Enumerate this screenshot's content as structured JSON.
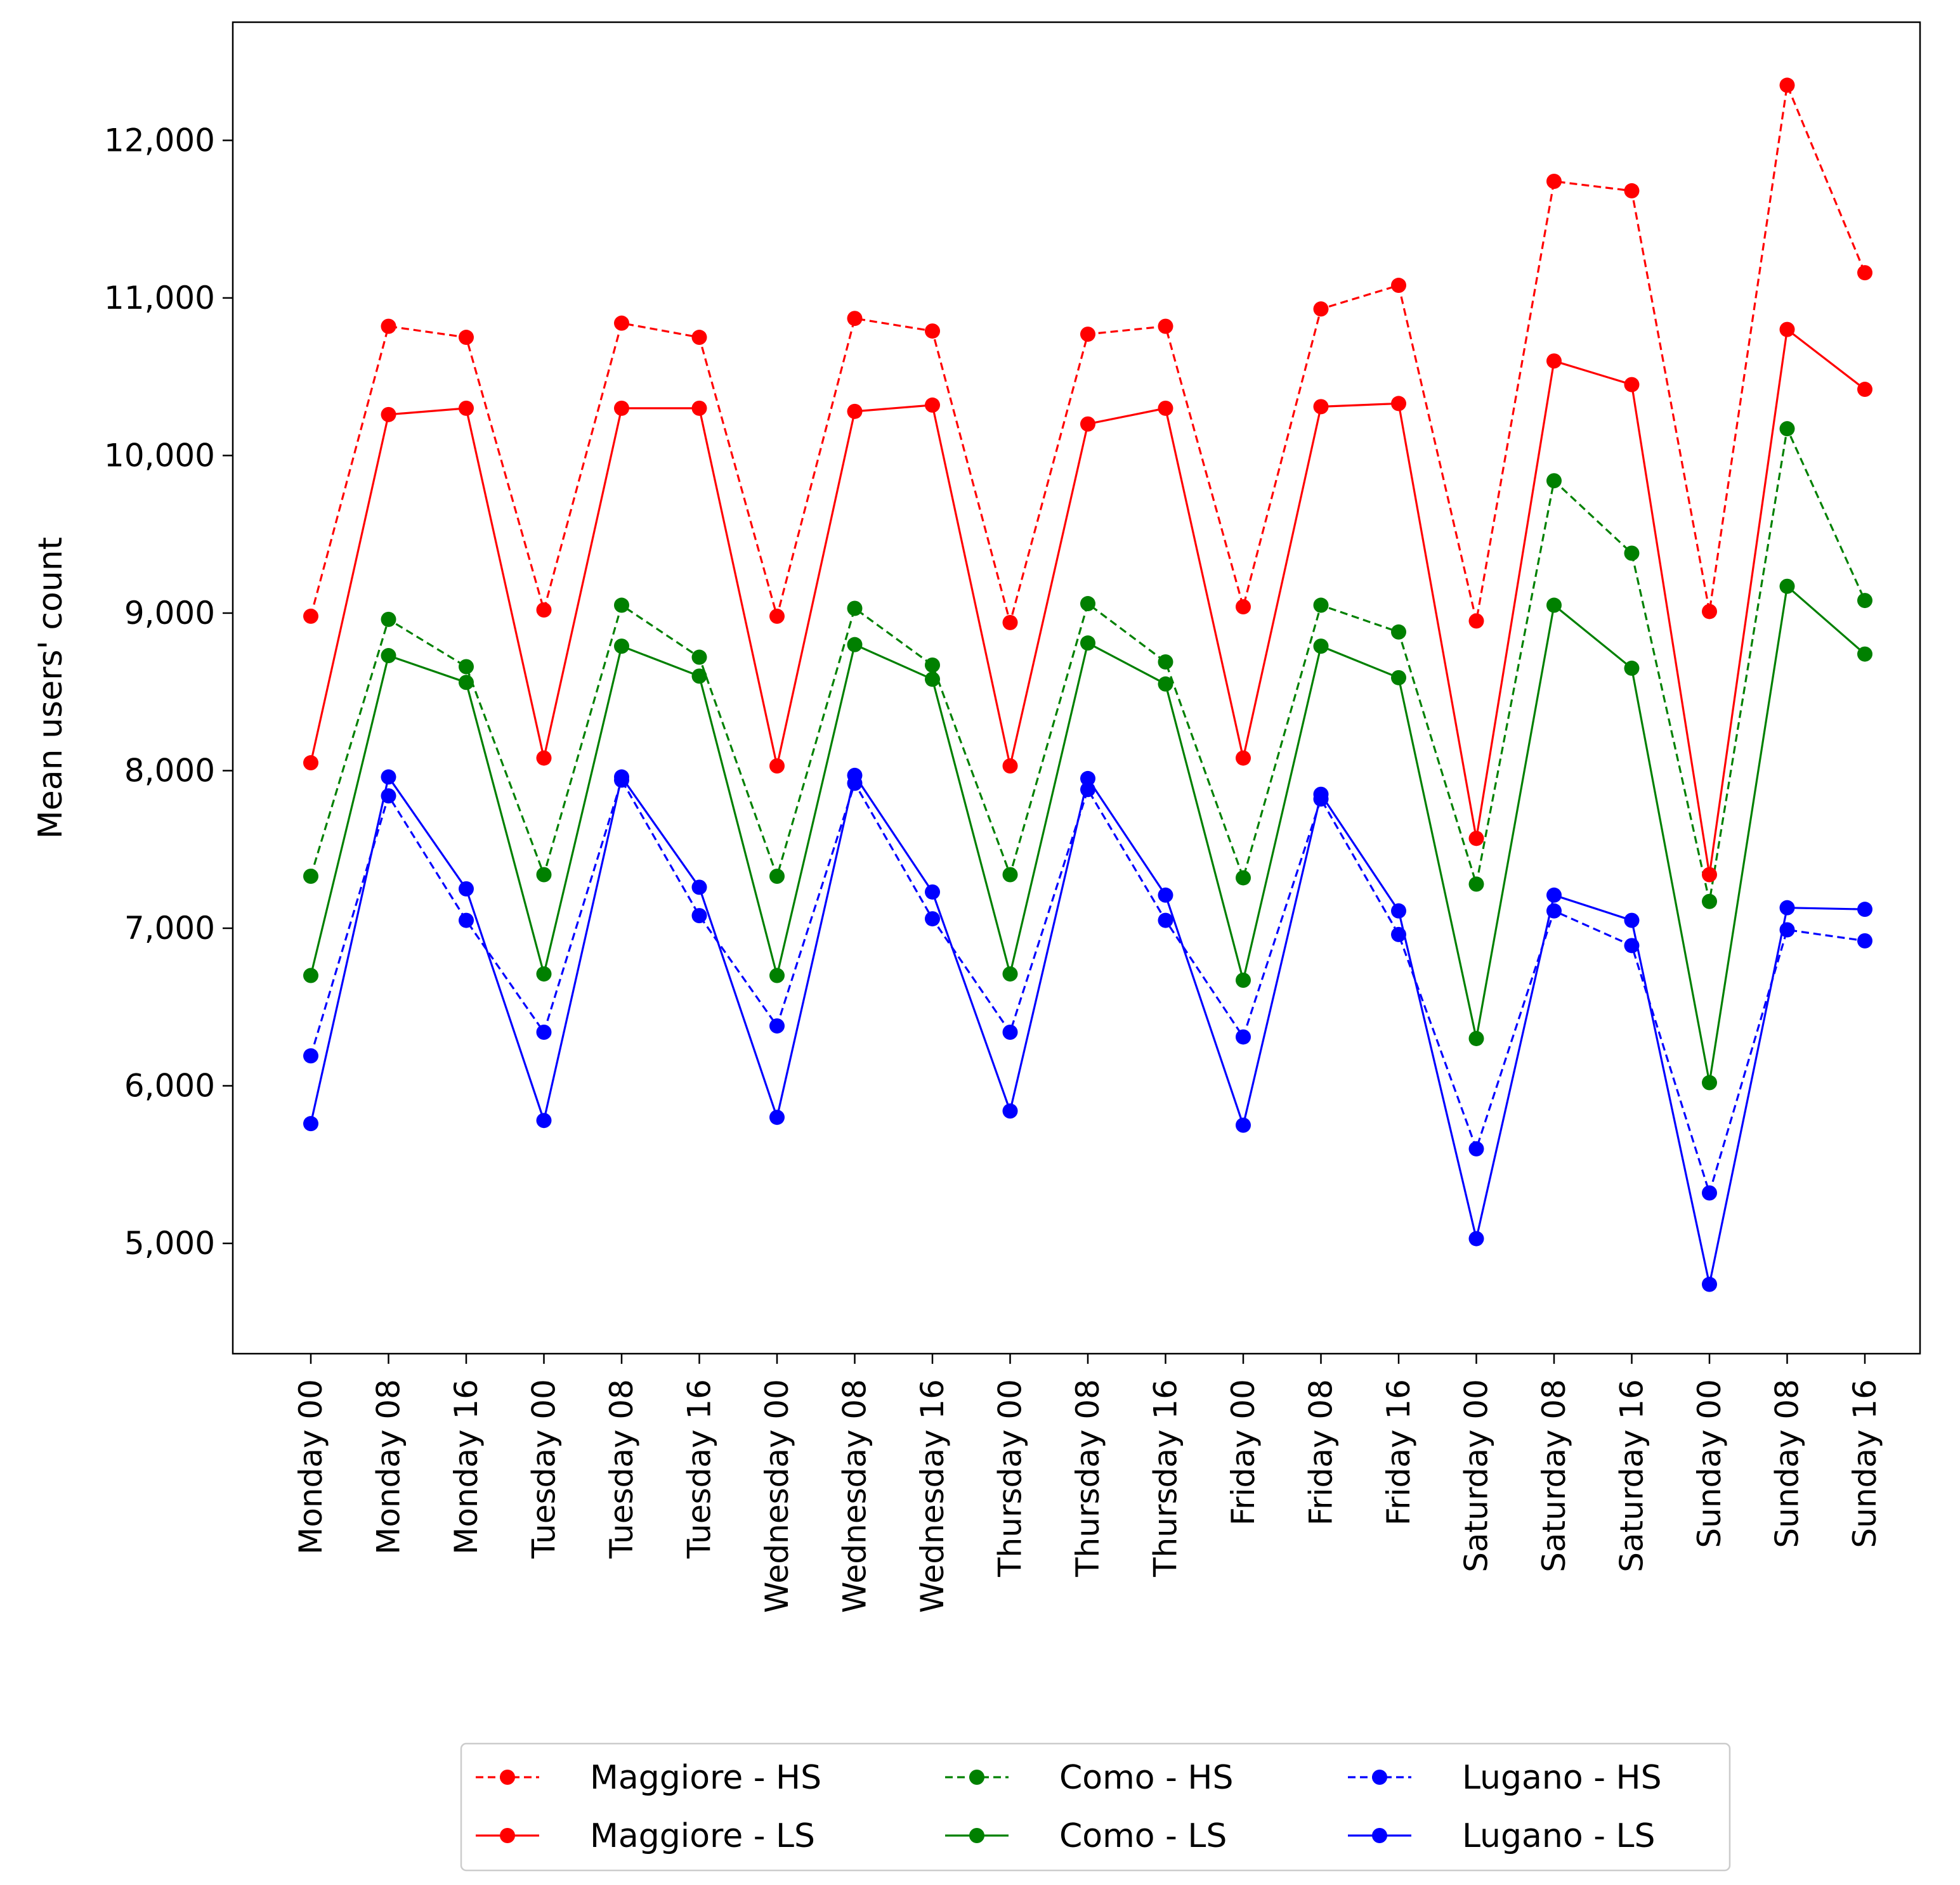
{
  "chart_data": {
    "type": "line",
    "title": "",
    "xlabel": "",
    "ylabel": "Mean users' count",
    "ylim": [
      4300,
      12750
    ],
    "yticks": [
      5000,
      6000,
      7000,
      8000,
      9000,
      10000,
      11000,
      12000
    ],
    "ytick_labels": [
      "5,000",
      "6,000",
      "7,000",
      "8,000",
      "9,000",
      "10,000",
      "11,000",
      "12,000"
    ],
    "categories": [
      "Monday 00",
      "Monday 08",
      "Monday 16",
      "Tuesday 00",
      "Tuesday 08",
      "Tuesday 16",
      "Wednesday 00",
      "Wednesday 08",
      "Wednesday 16",
      "Thursday 00",
      "Thursday 08",
      "Thursday 16",
      "Friday 00",
      "Friday 08",
      "Friday 16",
      "Saturday 00",
      "Saturday 08",
      "Saturday 16",
      "Sunday 00",
      "Sunday 08",
      "Sunday 16"
    ],
    "legend_position": "bottom-center",
    "grid": false,
    "series": [
      {
        "name": "Maggiore - HS",
        "color": "#ff0000",
        "style": "dashed",
        "values": [
          8980,
          10820,
          10750,
          9020,
          10840,
          10750,
          8980,
          10870,
          10790,
          8940,
          10770,
          10820,
          9040,
          10930,
          11080,
          8950,
          11740,
          11680,
          9010,
          12350,
          11160
        ]
      },
      {
        "name": "Como - HS",
        "color": "#008000",
        "style": "dashed",
        "values": [
          7330,
          8960,
          8660,
          7340,
          9050,
          8720,
          7330,
          9030,
          8670,
          7340,
          9060,
          8690,
          7320,
          9050,
          8880,
          7280,
          9840,
          9380,
          7170,
          10170,
          9080
        ]
      },
      {
        "name": "Lugano - HS",
        "color": "#0000ff",
        "style": "dashed",
        "values": [
          6190,
          7840,
          7050,
          6340,
          7940,
          7080,
          6380,
          7920,
          7060,
          6340,
          7880,
          7050,
          6310,
          7820,
          6960,
          5600,
          7110,
          6890,
          5320,
          6990,
          6920
        ]
      },
      {
        "name": "Maggiore - LS",
        "color": "#ff0000",
        "style": "solid",
        "values": [
          8050,
          10260,
          10300,
          8080,
          10300,
          10300,
          8030,
          10280,
          10320,
          8030,
          10200,
          10300,
          8080,
          10310,
          10330,
          7570,
          10600,
          10450,
          7340,
          10800,
          10420
        ]
      },
      {
        "name": "Como - LS",
        "color": "#008000",
        "style": "solid",
        "values": [
          6700,
          8730,
          8560,
          6710,
          8790,
          8600,
          6700,
          8800,
          8580,
          6710,
          8810,
          8550,
          6670,
          8790,
          8590,
          6300,
          9050,
          8650,
          6020,
          9170,
          8740
        ]
      },
      {
        "name": "Lugano - LS",
        "color": "#0000ff",
        "style": "solid",
        "values": [
          5760,
          7960,
          7250,
          5780,
          7960,
          7260,
          5800,
          7970,
          7230,
          5840,
          7950,
          7210,
          5750,
          7850,
          7110,
          5030,
          7210,
          7050,
          4740,
          7130,
          7120
        ]
      }
    ],
    "legend_order": [
      0,
      3,
      1,
      4,
      2,
      5
    ]
  }
}
